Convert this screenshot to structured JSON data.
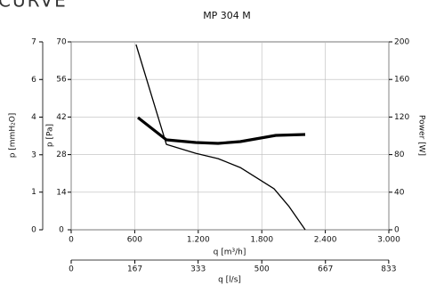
{
  "header": {
    "title": "CURVE"
  },
  "chart_data": {
    "type": "line",
    "title": "MP 304 M",
    "xlabel": "q [m³/h]",
    "x2label": "q [l/s]",
    "ylabel": "p [Pa]",
    "y3label": "p [mmH₂O]",
    "y2label": "Power [W]",
    "xlim": [
      0,
      3000
    ],
    "xticks": [
      0,
      600,
      {
        "value": 1200,
        "label": "1.200"
      },
      {
        "value": 1800,
        "label": "1.800"
      },
      {
        "value": 2400,
        "label": "2.400"
      },
      {
        "value": 3000,
        "label": "3.000"
      }
    ],
    "x2lim": [
      0,
      833.33
    ],
    "x2ticks": [
      0,
      167,
      333,
      500,
      667,
      833
    ],
    "ylim": [
      0,
      70
    ],
    "yticks": [
      0,
      14,
      28,
      42,
      56,
      70
    ],
    "y3lim": [
      0,
      7.14
    ],
    "y3ticks": [
      0,
      {
        "value": 1.43,
        "label": "1"
      },
      {
        "value": 2.85,
        "label": "3"
      },
      {
        "value": 4.28,
        "label": "4"
      },
      {
        "value": 5.71,
        "label": "6"
      },
      {
        "value": 7.14,
        "label": "7"
      }
    ],
    "y2lim": [
      0,
      200
    ],
    "y2ticks": [
      0,
      40,
      80,
      120,
      160,
      200
    ],
    "grid": true,
    "series": [
      {
        "color": "#000000",
        "axis": "y",
        "line_width": 1.3,
        "x": [
          613,
          899,
          1176,
          1387,
          1597,
          1916,
          2059,
          2210
        ],
        "values": [
          69,
          31.8,
          28.5,
          26.5,
          23.2,
          15.3,
          8.6,
          0
        ]
      },
      {
        "color": "#000000",
        "axis": "y2",
        "line_width": 3.2,
        "x": [
          630,
          899,
          1176,
          1387,
          1597,
          1933,
          2210
        ],
        "values": [
          119.4,
          95.7,
          92.9,
          91.9,
          93.8,
          100.5,
          101.4
        ]
      }
    ]
  }
}
